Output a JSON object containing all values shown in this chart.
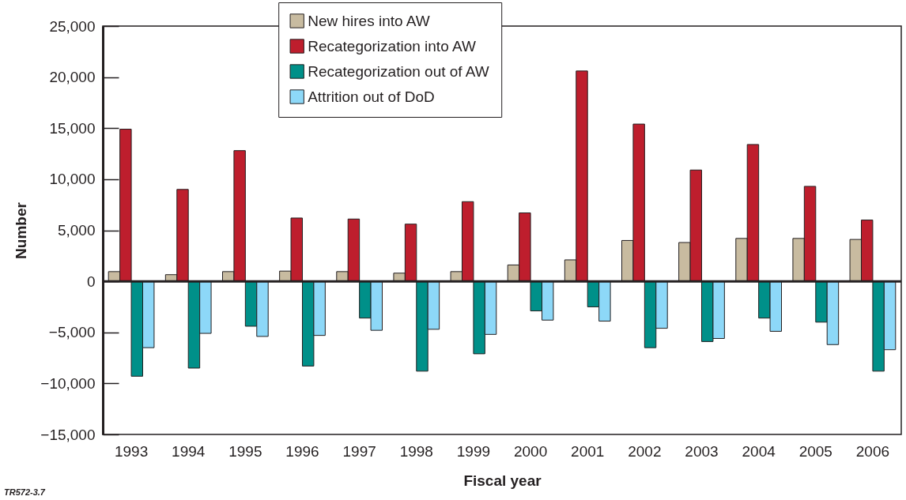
{
  "chart_data": {
    "type": "bar",
    "xlabel": "Fiscal year",
    "ylabel": "Number",
    "categories": [
      "1993",
      "1994",
      "1995",
      "1996",
      "1997",
      "1998",
      "1999",
      "2000",
      "2001",
      "2002",
      "2003",
      "2004",
      "2005",
      "2006"
    ],
    "series": [
      {
        "name": "New hires into AW",
        "color": "#c8bba0",
        "values": [
          950,
          650,
          950,
          1000,
          950,
          800,
          950,
          1600,
          2100,
          4000,
          3800,
          4200,
          4200,
          4100
        ]
      },
      {
        "name": "Recategorization into AW",
        "color": "#be1e2d",
        "values": [
          14900,
          9000,
          12800,
          6200,
          6100,
          5600,
          7800,
          6700,
          20600,
          15400,
          10900,
          13400,
          9300,
          6000
        ]
      },
      {
        "name": "Recategorization out of AW",
        "color": "#009089",
        "values": [
          -9300,
          -8500,
          -4400,
          -8300,
          -3600,
          -8800,
          -7100,
          -2900,
          -2500,
          -6500,
          -5900,
          -3600,
          -4000,
          -8800
        ]
      },
      {
        "name": "Attrition out of DoD",
        "color": "#8dd8f8",
        "values": [
          -6500,
          -5100,
          -5400,
          -5300,
          -4800,
          -4700,
          -5200,
          -3800,
          -3900,
          -4600,
          -5600,
          -4900,
          -6200,
          -6700
        ]
      }
    ],
    "ylim": [
      -15000,
      25000
    ],
    "yticks": [
      {
        "value": -15000,
        "label": "−15,000"
      },
      {
        "value": -10000,
        "label": "−10,000"
      },
      {
        "value": -5000,
        "label": "−5,000"
      },
      0,
      {
        "value": 5000,
        "label": "5,000"
      },
      {
        "value": 10000,
        "label": "10,000"
      },
      {
        "value": 15000,
        "label": "15,000"
      },
      {
        "value": 20000,
        "label": "20,000"
      },
      {
        "value": 25000,
        "label": "25,000"
      }
    ],
    "ref_lines": [
      {
        "axis": "y",
        "value": 0,
        "color": "#231f20"
      }
    ],
    "grid": false,
    "legend": "top",
    "annotations": [
      "TR572-3.7"
    ]
  }
}
